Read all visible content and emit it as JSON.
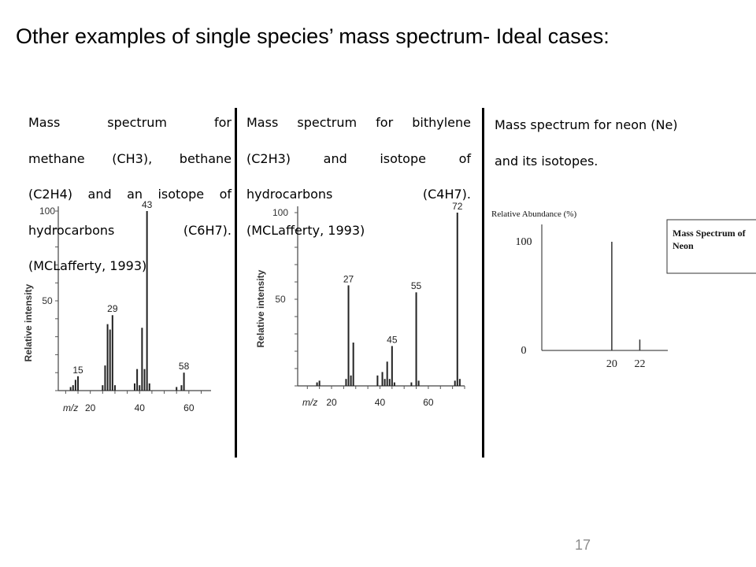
{
  "slide": {
    "title": "Other examples of single species’ mass spectrum- Ideal cases:",
    "page_number": "17"
  },
  "captions": {
    "c1": [
      "Mass spectrum for",
      "methane (CH3), bethane",
      "(C2H4) and an isotope of",
      "hydrocarbons (C6H7).",
      "(MCLafferty, 1993)"
    ],
    "c2": [
      "Mass spectrum for bithylene",
      "(C2H3) and isotope of",
      "hydrocarbons (C4H7).",
      "(MCLafferty, 1993)"
    ],
    "c3": [
      "Mass spectrum for neon (Ne)",
      "and its isotopes."
    ]
  },
  "chart_data": [
    {
      "type": "bar",
      "ylabel": "Relative intensity",
      "xlabel": "m/z",
      "xlim": [
        7,
        69
      ],
      "ylim": [
        0,
        100
      ],
      "yticks": [
        "100",
        "50"
      ],
      "xticks": [
        "20",
        "40",
        "60"
      ],
      "peaks": [
        {
          "x": 12,
          "y": 2
        },
        {
          "x": 13,
          "y": 3
        },
        {
          "x": 14,
          "y": 6
        },
        {
          "x": 15,
          "y": 8
        },
        {
          "x": 25,
          "y": 3
        },
        {
          "x": 26,
          "y": 14
        },
        {
          "x": 27,
          "y": 37
        },
        {
          "x": 28,
          "y": 34
        },
        {
          "x": 29,
          "y": 42
        },
        {
          "x": 30,
          "y": 3
        },
        {
          "x": 38,
          "y": 4
        },
        {
          "x": 39,
          "y": 12
        },
        {
          "x": 40,
          "y": 3
        },
        {
          "x": 41,
          "y": 35
        },
        {
          "x": 42,
          "y": 12
        },
        {
          "x": 43,
          "y": 100
        },
        {
          "x": 44,
          "y": 4
        },
        {
          "x": 55,
          "y": 2
        },
        {
          "x": 57,
          "y": 3
        },
        {
          "x": 58,
          "y": 10
        }
      ],
      "peak_labels": [
        {
          "x": 43,
          "text": "43"
        },
        {
          "x": 29,
          "text": "29"
        },
        {
          "x": 58,
          "text": "58"
        },
        {
          "x": 15,
          "text": "15"
        }
      ]
    },
    {
      "type": "bar",
      "ylabel": "Relative intensity",
      "xlabel": "m/z",
      "xlim": [
        6,
        75
      ],
      "ylim": [
        0,
        100
      ],
      "yticks": [
        "100",
        "50"
      ],
      "xticks": [
        "20",
        "40",
        "60"
      ],
      "peaks": [
        {
          "x": 14,
          "y": 2
        },
        {
          "x": 15,
          "y": 3
        },
        {
          "x": 26,
          "y": 4
        },
        {
          "x": 27,
          "y": 58
        },
        {
          "x": 28,
          "y": 6
        },
        {
          "x": 29,
          "y": 25
        },
        {
          "x": 39,
          "y": 6
        },
        {
          "x": 41,
          "y": 8
        },
        {
          "x": 42,
          "y": 4
        },
        {
          "x": 43,
          "y": 14
        },
        {
          "x": 44,
          "y": 4
        },
        {
          "x": 45,
          "y": 23
        },
        {
          "x": 46,
          "y": 2
        },
        {
          "x": 53,
          "y": 2
        },
        {
          "x": 55,
          "y": 54
        },
        {
          "x": 56,
          "y": 3
        },
        {
          "x": 71,
          "y": 3
        },
        {
          "x": 72,
          "y": 100
        },
        {
          "x": 73,
          "y": 4
        }
      ],
      "peak_labels": [
        {
          "x": 27,
          "text": "27"
        },
        {
          "x": 55,
          "text": "55"
        },
        {
          "x": 45,
          "text": "45"
        },
        {
          "x": 72,
          "text": "72"
        }
      ]
    },
    {
      "type": "bar",
      "title": "Mass Spectrum of Neon",
      "ylabel": "Relative Abundance (%)",
      "xlim": [
        15,
        24
      ],
      "ylim": [
        0,
        100
      ],
      "yticks": [
        "100",
        "0"
      ],
      "xticks": [
        "20",
        "22"
      ],
      "peaks": [
        {
          "x": 20,
          "y": 100
        },
        {
          "x": 22,
          "y": 10
        }
      ]
    }
  ]
}
